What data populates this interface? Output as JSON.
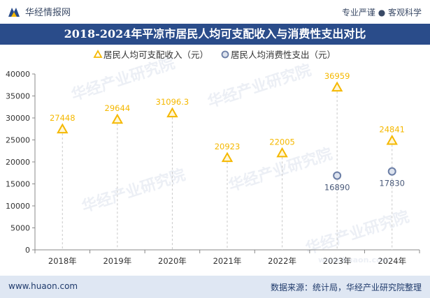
{
  "header": {
    "brand": "华经情报网",
    "tagline": "专业严谨 ● 客观科学",
    "title": "2018-2024年平凉市居民人均可支配收入与消费性支出对比"
  },
  "footer": {
    "url": "www.huaon.com",
    "source": "数据来源：统计局，华经产业研究院整理"
  },
  "watermark": {
    "text": "华经产业研究院",
    "url": "www.huaon.com"
  },
  "colors": {
    "income": "#f5b800",
    "expense": "#6b7ea6",
    "title_bg": "#2a4c8a"
  },
  "chart_data": {
    "type": "scatter",
    "categories": [
      "2018年",
      "2019年",
      "2020年",
      "2021年",
      "2022年",
      "2023年",
      "2024年"
    ],
    "ylim": [
      0,
      40000
    ],
    "yticks": [
      0,
      5000,
      10000,
      15000,
      20000,
      25000,
      30000,
      35000,
      40000
    ],
    "legend_position": "top",
    "grid": false,
    "series": [
      {
        "name": "居民人均可支配收入（元）",
        "marker": "triangle",
        "values": [
          27448,
          29644,
          31096.3,
          20923,
          22005,
          36959,
          24841
        ],
        "labels": [
          "27448",
          "29644",
          "31096.3",
          "20923",
          "22005",
          "36959",
          "24841"
        ]
      },
      {
        "name": "居民人均消费性支出（元）",
        "marker": "circle",
        "values": [
          null,
          null,
          null,
          null,
          null,
          16890,
          17830
        ],
        "labels": [
          "",
          "",
          "",
          "",
          "",
          "16890",
          "17830"
        ]
      }
    ]
  }
}
